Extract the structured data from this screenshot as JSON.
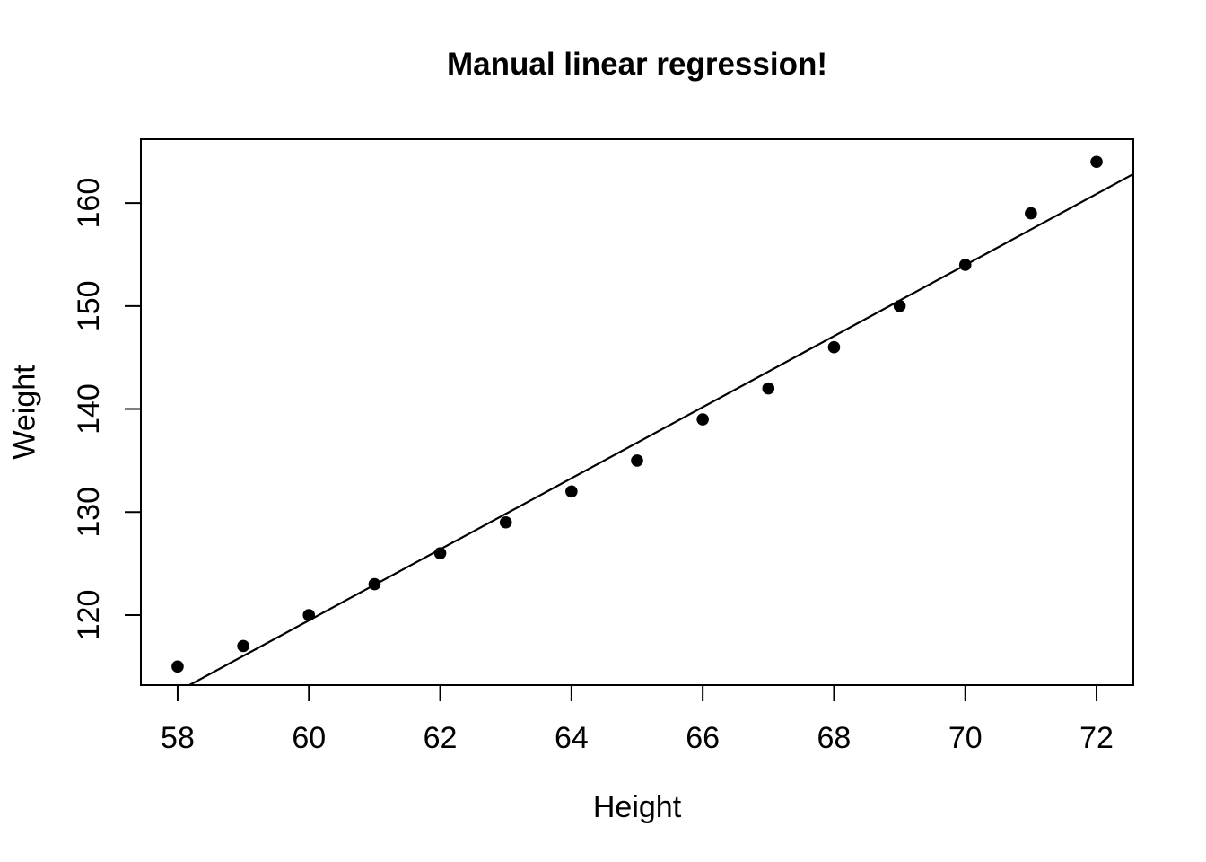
{
  "chart_data": {
    "type": "scatter",
    "title": "Manual linear regression!",
    "xlabel": "Height",
    "ylabel": "Weight",
    "x": [
      58,
      59,
      60,
      61,
      62,
      63,
      64,
      65,
      66,
      67,
      68,
      69,
      70,
      71,
      72
    ],
    "y": [
      115,
      117,
      120,
      123,
      126,
      129,
      132,
      135,
      139,
      142,
      146,
      150,
      154,
      159,
      164
    ],
    "xticks": [
      58,
      60,
      62,
      64,
      66,
      68,
      70,
      72
    ],
    "yticks": [
      120,
      130,
      140,
      150,
      160
    ],
    "xlim": [
      57.44,
      72.56
    ],
    "ylim": [
      113.2,
      166.2
    ],
    "regression_line": {
      "slope": 3.45,
      "intercept": -87.517
    },
    "point_color": "#000000",
    "line_color": "#000000",
    "axis_color": "#000000",
    "background": "#ffffff",
    "grid": false
  }
}
